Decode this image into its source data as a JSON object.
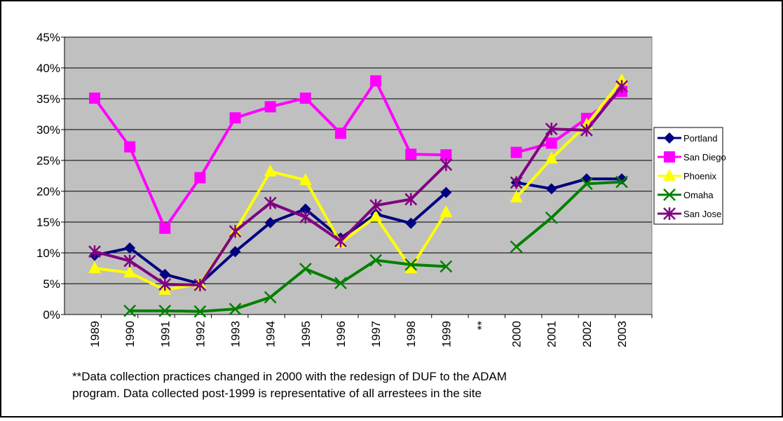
{
  "chart_data": {
    "type": "line",
    "categories": [
      "1989",
      "1990",
      "1991",
      "1992",
      "1993",
      "1994",
      "1995",
      "1996",
      "1997",
      "1998",
      "1999",
      "**",
      "2000",
      "2001",
      "2002",
      "2003"
    ],
    "series": [
      {
        "name": "Portland",
        "color": "#000080",
        "marker": "diamond",
        "values": [
          9.6,
          10.8,
          6.5,
          5.0,
          10.2,
          14.9,
          17.1,
          12.4,
          16.3,
          14.8,
          19.8,
          null,
          21.4,
          20.4,
          22.0,
          22.0
        ]
      },
      {
        "name": "San Diego",
        "color": "#ff00ff",
        "marker": "square",
        "values": [
          35.1,
          27.2,
          14.0,
          22.2,
          31.9,
          33.7,
          35.1,
          29.4,
          37.9,
          26.0,
          25.9,
          null,
          26.3,
          27.8,
          31.8,
          36.2
        ]
      },
      {
        "name": "Phoenix",
        "color": "#ffff00",
        "marker": "triangle",
        "values": [
          7.5,
          6.8,
          4.0,
          5.0,
          13.5,
          23.2,
          21.8,
          11.6,
          15.9,
          7.5,
          16.6,
          null,
          19.0,
          25.3,
          30.8,
          38.0
        ]
      },
      {
        "name": "Omaha",
        "color": "#008000",
        "marker": "x",
        "values": [
          null,
          0.6,
          0.6,
          0.5,
          0.9,
          2.8,
          7.4,
          5.1,
          8.8,
          8.1,
          7.8,
          null,
          11.0,
          15.7,
          21.2,
          21.5
        ]
      },
      {
        "name": "San Jose",
        "color": "#800080",
        "marker": "star",
        "values": [
          10.2,
          8.7,
          4.9,
          4.8,
          13.5,
          18.1,
          15.8,
          11.9,
          17.7,
          18.7,
          24.3,
          null,
          21.4,
          30.1,
          29.9,
          37.0
        ]
      }
    ],
    "ylim": [
      0,
      45
    ],
    "yticks": [
      {
        "value": 0,
        "label": "0%"
      },
      {
        "value": 5,
        "label": "5%"
      },
      {
        "value": 10,
        "label": "10%"
      },
      {
        "value": 15,
        "label": "15%"
      },
      {
        "value": 20,
        "label": "20%"
      },
      {
        "value": 25,
        "label": "25%"
      },
      {
        "value": 30,
        "label": "30%"
      },
      {
        "value": 35,
        "label": "35%"
      },
      {
        "value": 40,
        "label": "40%"
      },
      {
        "value": 45,
        "label": "45%"
      }
    ],
    "grid": true,
    "background": "#c0c0c0",
    "legend": "right",
    "annotation": [
      "**Data collection practices changed in 2000 with the redesign of DUF to the ADAM",
      "program.  Data collected post-1999 is representative of all arrestees in the site"
    ]
  }
}
